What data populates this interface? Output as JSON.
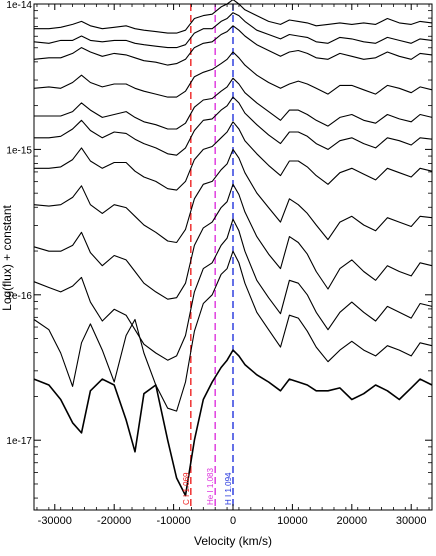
{
  "chart_data": {
    "type": "line",
    "title": "",
    "xlabel": "Velocity (km/s)",
    "ylabel": "Log(flux) + constant",
    "xlim": [
      -33500,
      33500
    ],
    "ylim_log10": [
      -17.48,
      -14.0
    ],
    "y_scale": "log",
    "x_ticks": [
      -30000,
      -20000,
      -10000,
      0,
      10000,
      20000,
      30000
    ],
    "x_tick_labels": [
      "-30000",
      "-20000",
      "-10000",
      "0",
      "10000",
      "20000",
      "30000"
    ],
    "y_ticks_log10": [
      -17,
      -16,
      -15,
      -14
    ],
    "y_tick_labels": [
      "1e-17",
      "1e-16",
      "1e-15",
      "1e-14"
    ],
    "grid": false,
    "reference_lines": [
      {
        "label": "C I 1.069",
        "velocity": -7100,
        "color": "#ee2222"
      },
      {
        "label": "He I 1.083",
        "velocity": -3000,
        "color": "#dd33dd"
      },
      {
        "label": "H I 1.094",
        "velocity": 0,
        "color": "#2233dd"
      }
    ],
    "series": [
      {
        "velocity": [
          -33500,
          -31000,
          -29000,
          -27000,
          -25500,
          -24000,
          -22000,
          -20000,
          -18000,
          -16500,
          -15000,
          -13000,
          -11000,
          -9500,
          -8000,
          -6500,
          -5000,
          -3500,
          -2000,
          -1000,
          0,
          1000,
          2000,
          4000,
          6000,
          8000,
          9500,
          11000,
          12500,
          14000,
          16000,
          18000,
          20000,
          22000,
          24000,
          26000,
          28000,
          30000,
          31500,
          33500
        ],
        "log_flux": [
          -14.17,
          -14.17,
          -14.16,
          -14.14,
          -14.12,
          -14.15,
          -14.17,
          -14.16,
          -14.15,
          -14.17,
          -14.18,
          -14.19,
          -14.2,
          -14.2,
          -14.18,
          -14.1,
          -14.08,
          -14.07,
          -14.02,
          -14.0,
          -13.97,
          -14.0,
          -14.04,
          -14.08,
          -14.12,
          -14.14,
          -14.11,
          -14.12,
          -14.13,
          -14.15,
          -14.14,
          -14.13,
          -14.14,
          -14.13,
          -14.14,
          -14.1,
          -14.13,
          -14.14,
          -14.12,
          -14.13
        ]
      },
      {
        "velocity": [
          -33500,
          -31000,
          -29000,
          -27000,
          -25500,
          -24000,
          -22000,
          -20000,
          -18000,
          -16500,
          -15000,
          -13000,
          -11000,
          -9500,
          -8000,
          -6500,
          -5000,
          -3500,
          -2000,
          -1000,
          0,
          1000,
          2000,
          4000,
          6000,
          8000,
          9500,
          11000,
          12500,
          14000,
          16000,
          18000,
          20000,
          22000,
          24000,
          26000,
          28000,
          30000,
          31500,
          33500
        ],
        "log_flux": [
          -14.26,
          -14.27,
          -14.25,
          -14.25,
          -14.22,
          -14.25,
          -14.26,
          -14.25,
          -14.25,
          -14.27,
          -14.28,
          -14.29,
          -14.3,
          -14.3,
          -14.28,
          -14.2,
          -14.17,
          -14.17,
          -14.12,
          -14.1,
          -14.06,
          -14.08,
          -14.12,
          -14.18,
          -14.21,
          -14.24,
          -14.21,
          -14.22,
          -14.23,
          -14.26,
          -14.27,
          -14.23,
          -14.24,
          -14.26,
          -14.27,
          -14.23,
          -14.25,
          -14.27,
          -14.24,
          -14.25
        ]
      },
      {
        "velocity": [
          -33500,
          -31000,
          -29000,
          -27000,
          -25500,
          -24000,
          -22000,
          -20000,
          -18000,
          -16500,
          -15000,
          -13000,
          -11000,
          -9500,
          -8000,
          -6500,
          -5000,
          -3500,
          -2000,
          -1000,
          0,
          1000,
          2000,
          4000,
          6000,
          8000,
          9500,
          11000,
          12500,
          14000,
          16000,
          18000,
          20000,
          22000,
          24000,
          26000,
          28000,
          30000,
          31500,
          33500
        ],
        "log_flux": [
          -14.38,
          -14.37,
          -14.37,
          -14.34,
          -14.3,
          -14.33,
          -14.36,
          -14.34,
          -14.35,
          -14.37,
          -14.39,
          -14.4,
          -14.42,
          -14.41,
          -14.38,
          -14.3,
          -14.27,
          -14.26,
          -14.21,
          -14.19,
          -14.15,
          -14.18,
          -14.22,
          -14.28,
          -14.32,
          -14.36,
          -14.33,
          -14.32,
          -14.34,
          -14.37,
          -14.38,
          -14.34,
          -14.36,
          -14.38,
          -14.37,
          -14.33,
          -14.36,
          -14.38,
          -14.34,
          -14.35
        ]
      },
      {
        "velocity": [
          -33500,
          -31000,
          -29000,
          -27000,
          -25500,
          -24000,
          -22000,
          -20000,
          -18000,
          -16500,
          -15000,
          -13000,
          -11000,
          -9500,
          -8000,
          -6500,
          -5000,
          -3500,
          -2000,
          -1000,
          0,
          1000,
          2000,
          4000,
          6000,
          8000,
          9500,
          11000,
          12500,
          14000,
          16000,
          18000,
          20000,
          22000,
          24000,
          26000,
          28000,
          30000,
          31500,
          33500
        ],
        "log_flux": [
          -14.58,
          -14.57,
          -14.58,
          -14.54,
          -14.49,
          -14.54,
          -14.57,
          -14.55,
          -14.55,
          -14.58,
          -14.6,
          -14.62,
          -14.64,
          -14.64,
          -14.6,
          -14.5,
          -14.47,
          -14.45,
          -14.41,
          -14.38,
          -14.33,
          -14.37,
          -14.42,
          -14.49,
          -14.54,
          -14.58,
          -14.55,
          -14.53,
          -14.55,
          -14.58,
          -14.62,
          -14.56,
          -14.56,
          -14.59,
          -14.62,
          -14.56,
          -14.58,
          -14.61,
          -14.57,
          -14.59
        ]
      },
      {
        "velocity": [
          -33500,
          -31000,
          -29000,
          -27000,
          -25500,
          -24000,
          -22000,
          -20000,
          -18000,
          -16500,
          -15000,
          -13000,
          -11000,
          -9500,
          -8000,
          -6500,
          -5000,
          -3500,
          -2000,
          -1000,
          0,
          1000,
          2000,
          4000,
          6000,
          8000,
          9500,
          11000,
          12500,
          14000,
          16000,
          18000,
          20000,
          22000,
          24000,
          26000,
          28000,
          30000,
          31500,
          33500
        ],
        "log_flux": [
          -14.77,
          -14.77,
          -14.77,
          -14.74,
          -14.68,
          -14.73,
          -14.78,
          -14.76,
          -14.74,
          -14.78,
          -14.81,
          -14.83,
          -14.86,
          -14.86,
          -14.82,
          -14.71,
          -14.66,
          -14.65,
          -14.6,
          -14.57,
          -14.51,
          -14.55,
          -14.61,
          -14.68,
          -14.74,
          -14.8,
          -14.73,
          -14.73,
          -14.76,
          -14.8,
          -14.84,
          -14.78,
          -14.76,
          -14.8,
          -14.82,
          -14.76,
          -14.79,
          -14.81,
          -14.76,
          -14.78
        ]
      },
      {
        "velocity": [
          -33500,
          -31000,
          -29000,
          -27000,
          -25500,
          -24000,
          -22000,
          -20000,
          -18000,
          -16500,
          -15000,
          -13000,
          -11000,
          -9500,
          -8000,
          -6500,
          -5000,
          -3500,
          -2000,
          -1000,
          0,
          1000,
          2000,
          4000,
          6000,
          8000,
          9500,
          11000,
          12500,
          14000,
          16000,
          18000,
          20000,
          22000,
          24000,
          26000,
          28000,
          30000,
          31500,
          33500
        ],
        "log_flux": [
          -14.92,
          -14.92,
          -14.91,
          -14.86,
          -14.8,
          -14.87,
          -14.92,
          -14.88,
          -14.89,
          -14.93,
          -14.96,
          -14.99,
          -15.03,
          -15.04,
          -14.99,
          -14.87,
          -14.8,
          -14.79,
          -14.73,
          -14.7,
          -14.64,
          -14.68,
          -14.75,
          -14.83,
          -14.9,
          -14.96,
          -14.88,
          -14.88,
          -14.91,
          -14.96,
          -15.0,
          -14.94,
          -14.92,
          -14.96,
          -14.99,
          -14.92,
          -14.94,
          -14.97,
          -14.92,
          -14.93
        ]
      },
      {
        "velocity": [
          -33500,
          -31000,
          -29000,
          -27000,
          -25500,
          -24000,
          -22000,
          -20000,
          -18000,
          -16500,
          -15000,
          -13000,
          -11000,
          -9500,
          -8000,
          -6500,
          -5000,
          -3500,
          -2000,
          -1000,
          0,
          1000,
          2000,
          4000,
          6000,
          8000,
          9500,
          11000,
          12500,
          14000,
          16000,
          18000,
          20000,
          22000,
          24000,
          26000,
          28000,
          30000,
          31500,
          33500
        ],
        "log_flux": [
          -15.13,
          -15.13,
          -15.12,
          -15.07,
          -14.99,
          -15.08,
          -15.13,
          -15.09,
          -15.09,
          -15.15,
          -15.19,
          -15.22,
          -15.27,
          -15.28,
          -15.22,
          -15.07,
          -15.0,
          -14.98,
          -14.92,
          -14.88,
          -14.81,
          -14.86,
          -14.94,
          -15.03,
          -15.11,
          -15.18,
          -15.08,
          -15.08,
          -15.12,
          -15.18,
          -15.24,
          -15.16,
          -15.13,
          -15.17,
          -15.21,
          -15.13,
          -15.16,
          -15.19,
          -15.13,
          -15.15
        ]
      },
      {
        "velocity": [
          -33500,
          -31000,
          -29000,
          -27000,
          -25500,
          -24000,
          -22000,
          -20000,
          -18000,
          -16500,
          -15000,
          -13000,
          -11000,
          -9500,
          -8000,
          -6500,
          -5000,
          -3500,
          -2000,
          -1000,
          0,
          1000,
          2000,
          4000,
          6000,
          8000,
          9500,
          11000,
          12500,
          14000,
          16000,
          18000,
          20000,
          22000,
          24000,
          26000,
          28000,
          30000,
          31500,
          33500
        ],
        "log_flux": [
          -15.38,
          -15.39,
          -15.38,
          -15.33,
          -15.25,
          -15.38,
          -15.44,
          -15.38,
          -15.4,
          -15.46,
          -15.52,
          -15.57,
          -15.63,
          -15.64,
          -15.55,
          -15.34,
          -15.24,
          -15.22,
          -15.14,
          -15.1,
          -15.0,
          -15.06,
          -15.16,
          -15.3,
          -15.4,
          -15.5,
          -15.34,
          -15.38,
          -15.44,
          -15.52,
          -15.62,
          -15.5,
          -15.46,
          -15.52,
          -15.56,
          -15.47,
          -15.5,
          -15.53,
          -15.46,
          -15.47
        ]
      },
      {
        "velocity": [
          -33500,
          -31000,
          -29000,
          -27000,
          -25500,
          -24000,
          -22000,
          -20000,
          -18000,
          -16500,
          -15000,
          -13000,
          -11000,
          -9500,
          -8000,
          -6500,
          -5000,
          -3500,
          -2000,
          -1000,
          0,
          1000,
          2000,
          4000,
          6000,
          8000,
          9500,
          11000,
          12500,
          14000,
          16000,
          18000,
          20000,
          22000,
          24000,
          26000,
          28000,
          30000,
          31500,
          33500
        ],
        "log_flux": [
          -15.67,
          -15.7,
          -15.7,
          -15.66,
          -15.57,
          -15.71,
          -15.8,
          -15.73,
          -15.76,
          -15.84,
          -15.92,
          -15.98,
          -16.03,
          -16.02,
          -15.92,
          -15.66,
          -15.54,
          -15.5,
          -15.4,
          -15.36,
          -15.24,
          -15.31,
          -15.43,
          -15.6,
          -15.72,
          -15.82,
          -15.6,
          -15.64,
          -15.72,
          -15.84,
          -15.96,
          -15.82,
          -15.76,
          -15.84,
          -15.9,
          -15.8,
          -15.84,
          -15.87,
          -15.78,
          -15.8
        ]
      },
      {
        "velocity": [
          -33500,
          -31000,
          -29000,
          -27000,
          -25500,
          -24000,
          -22000,
          -20000,
          -18000,
          -16500,
          -15000,
          -13000,
          -11000,
          -9500,
          -8000,
          -6500,
          -5000,
          -3500,
          -2000,
          -1000,
          0,
          1000,
          2000,
          4000,
          6000,
          8000,
          9500,
          11000,
          12500,
          14000,
          16000,
          18000,
          20000,
          22000,
          24000,
          26000,
          28000,
          30000,
          31500,
          33500
        ],
        "log_flux": [
          -15.91,
          -15.95,
          -15.98,
          -15.94,
          -15.88,
          -16.05,
          -16.18,
          -16.1,
          -16.14,
          -16.24,
          -16.34,
          -16.4,
          -16.45,
          -16.42,
          -16.28,
          -15.98,
          -15.82,
          -15.78,
          -15.66,
          -15.61,
          -15.48,
          -15.56,
          -15.7,
          -15.9,
          -16.02,
          -16.13,
          -15.9,
          -15.92,
          -16.0,
          -16.12,
          -16.24,
          -16.12,
          -16.05,
          -16.12,
          -16.18,
          -16.08,
          -16.12,
          -16.16,
          -16.06,
          -16.08
        ]
      },
      {
        "velocity": [
          -33500,
          -31000,
          -29000,
          -27000,
          -25500,
          -24000,
          -22000,
          -20000,
          -18000,
          -16500,
          -15000,
          -13000,
          -11000,
          -9500,
          -8000,
          -6500,
          -5000,
          -3500,
          -2000,
          -1000,
          0,
          1000,
          2000,
          4000,
          6000,
          8000,
          9500,
          11000,
          12500,
          14000,
          16000,
          18000,
          20000,
          22000,
          24000,
          26000,
          28000,
          30000,
          31500,
          33500
        ],
        "log_flux": [
          -16.17,
          -16.24,
          -16.4,
          -16.63,
          -16.33,
          -16.2,
          -16.38,
          -16.6,
          -16.28,
          -16.17,
          -16.4,
          -16.62,
          -16.78,
          -16.8,
          -16.6,
          -16.25,
          -16.06,
          -16.0,
          -15.86,
          -15.82,
          -15.7,
          -15.78,
          -15.92,
          -16.12,
          -16.24,
          -16.36,
          -16.14,
          -16.16,
          -16.25,
          -16.36,
          -16.46,
          -16.38,
          -16.32,
          -16.38,
          -16.42,
          -16.35,
          -16.38,
          -16.42,
          -16.33,
          -16.35
        ]
      },
      {
        "velocity": [
          -33500,
          -31000,
          -29000,
          -27000,
          -25500,
          -24000,
          -22000,
          -20000,
          -18000,
          -16500,
          -15000,
          -13000,
          -11000,
          -9500,
          -8000,
          -6500,
          -5000,
          -3500,
          -2000,
          -1000,
          0,
          1000,
          2000,
          4000,
          6000,
          8000,
          9500,
          11000,
          12500,
          14000,
          16000,
          18000,
          20000,
          22000,
          24000,
          26000,
          28000,
          30000,
          31500,
          33500
        ],
        "log_flux": [
          -16.58,
          -16.62,
          -16.72,
          -16.88,
          -16.95,
          -16.66,
          -16.58,
          -16.62,
          -16.86,
          -17.08,
          -16.68,
          -16.62,
          -17.0,
          -17.26,
          -17.38,
          -17.0,
          -16.72,
          -16.6,
          -16.5,
          -16.45,
          -16.38,
          -16.42,
          -16.48,
          -16.55,
          -16.6,
          -16.66,
          -16.58,
          -16.6,
          -16.62,
          -16.66,
          -16.66,
          -16.64,
          -16.72,
          -16.68,
          -16.62,
          -16.66,
          -16.72,
          -16.64,
          -16.58,
          -16.62
        ]
      }
    ]
  }
}
